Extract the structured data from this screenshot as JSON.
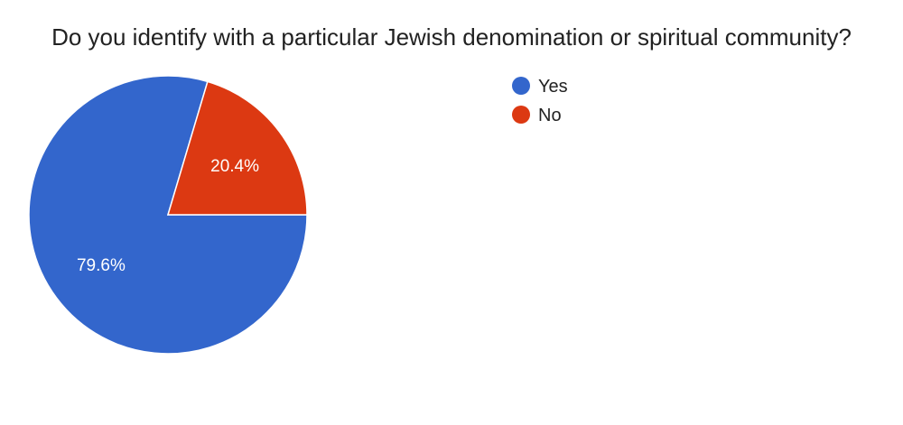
{
  "chart_data": {
    "type": "pie",
    "title": "Do you identify with a particular Jewish denomination or spiritual community?",
    "slices": [
      {
        "label": "Yes",
        "value": 79.6,
        "display": "79.6%",
        "color": "#3366cc"
      },
      {
        "label": "No",
        "value": 20.4,
        "display": "20.4%",
        "color": "#dc3912"
      }
    ],
    "legend_position": "right"
  }
}
